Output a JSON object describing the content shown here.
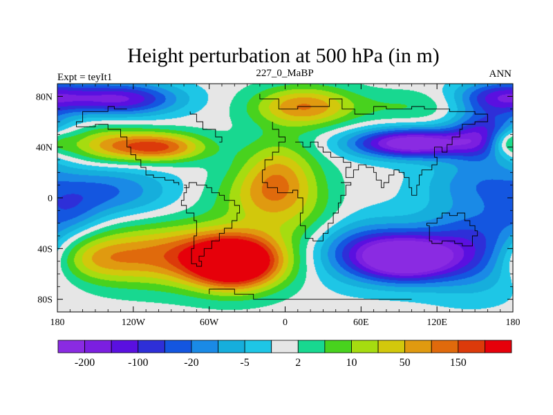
{
  "chart_data": {
    "type": "heatmap",
    "title": "Height perturbation at 500 hPa (in m)",
    "left_string": "Expt = teyIt1",
    "center_string": "227_0_MaBP",
    "right_string": "ANN",
    "x_range": [
      -180,
      180
    ],
    "y_range": [
      -90,
      90
    ],
    "x_ticks": [
      {
        "value": -180,
        "label": "180"
      },
      {
        "value": -120,
        "label": "120W"
      },
      {
        "value": -60,
        "label": "60W"
      },
      {
        "value": 0,
        "label": "0"
      },
      {
        "value": 60,
        "label": "60E"
      },
      {
        "value": 120,
        "label": "120E"
      },
      {
        "value": 180,
        "label": "180"
      }
    ],
    "y_ticks": [
      {
        "value": 80,
        "label": "80N"
      },
      {
        "value": 40,
        "label": "40N"
      },
      {
        "value": 0,
        "label": "0"
      },
      {
        "value": -40,
        "label": "40S"
      },
      {
        "value": -80,
        "label": "80S"
      }
    ],
    "colorbar": {
      "colors": [
        "#8a2be2",
        "#7b1fe0",
        "#5a10e0",
        "#2e2fd8",
        "#1456e0",
        "#1a8ae6",
        "#16aedc",
        "#1ec6e6",
        "#e6e6e6",
        "#18d890",
        "#48d21e",
        "#a6dc10",
        "#d2c80c",
        "#e09a10",
        "#e06a0c",
        "#dc3a0a",
        "#e6000a"
      ],
      "labels": [
        {
          "boundary": 1,
          "text": "-200"
        },
        {
          "boundary": 3,
          "text": "-100"
        },
        {
          "boundary": 5,
          "text": "-20"
        },
        {
          "boundary": 7,
          "text": "-5"
        },
        {
          "boundary": 9,
          "text": "2"
        },
        {
          "boundary": 11,
          "text": "10"
        },
        {
          "boundary": 13,
          "text": "50"
        },
        {
          "boundary": 15,
          "text": "150"
        }
      ]
    },
    "anomaly_centers": [
      {
        "lon": -40,
        "lat": -52,
        "amp": 9.0,
        "sx": 24,
        "sy": 14
      },
      {
        "lon": -75,
        "lat": -45,
        "amp": 6.0,
        "sx": 60,
        "sy": 17
      },
      {
        "lon": -155,
        "lat": -48,
        "amp": 3.0,
        "sx": 28,
        "sy": 13
      },
      {
        "lon": 15,
        "lat": 72,
        "amp": 5.5,
        "sx": 28,
        "sy": 11
      },
      {
        "lon": 100,
        "lat": 72,
        "amp": 1.5,
        "sx": 30,
        "sy": 9
      },
      {
        "lon": -100,
        "lat": 40,
        "amp": 6.5,
        "sx": 26,
        "sy": 8
      },
      {
        "lon": -145,
        "lat": 42,
        "amp": 3.5,
        "sx": 25,
        "sy": 10
      },
      {
        "lon": 175,
        "lat": 44,
        "amp": 4.5,
        "sx": 12,
        "sy": 8
      },
      {
        "lon": -5,
        "lat": 20,
        "amp": 4.0,
        "sx": 22,
        "sy": 20
      },
      {
        "lon": -15,
        "lat": 0,
        "amp": 3.0,
        "sx": 30,
        "sy": 16
      },
      {
        "lon": 20,
        "lat": -20,
        "amp": 1.5,
        "sx": 28,
        "sy": 14
      },
      {
        "lon": -130,
        "lat": 78,
        "amp": -6.5,
        "sx": 32,
        "sy": 9
      },
      {
        "lon": 100,
        "lat": 43,
        "amp": -9.0,
        "sx": 33,
        "sy": 8
      },
      {
        "lon": 160,
        "lat": 50,
        "amp": -6.0,
        "sx": 20,
        "sy": 14
      },
      {
        "lon": 170,
        "lat": 80,
        "amp": -5.0,
        "sx": 25,
        "sy": 9
      },
      {
        "lon": 95,
        "lat": -48,
        "amp": -9.0,
        "sx": 26,
        "sy": 12
      },
      {
        "lon": 55,
        "lat": -40,
        "amp": -4.5,
        "sx": 32,
        "sy": 18
      },
      {
        "lon": 150,
        "lat": -40,
        "amp": -5.5,
        "sx": 32,
        "sy": 22
      },
      {
        "lon": -140,
        "lat": 5,
        "amp": -3.5,
        "sx": 35,
        "sy": 14
      },
      {
        "lon": 150,
        "lat": 12,
        "amp": -2.5,
        "sx": 30,
        "sy": 14
      },
      {
        "lon": -170,
        "lat": -12,
        "amp": -2.0,
        "sx": 18,
        "sy": 12
      }
    ],
    "coastlines": [
      [
        [
          -20,
          82
        ],
        [
          -20,
          78
        ],
        [
          -5,
          78
        ],
        [
          -5,
          70
        ],
        [
          10,
          70
        ],
        [
          10,
          72
        ],
        [
          35,
          72
        ],
        [
          35,
          78
        ],
        [
          45,
          78
        ],
        [
          45,
          70
        ],
        [
          55,
          70
        ],
        [
          55,
          66
        ],
        [
          60,
          66
        ]
      ],
      [
        [
          -75,
          68
        ],
        [
          -75,
          66
        ],
        [
          -70,
          66
        ],
        [
          -70,
          60
        ],
        [
          -65,
          60
        ],
        [
          -65,
          54
        ],
        [
          -55,
          54
        ],
        [
          -55,
          48
        ],
        [
          -50,
          48
        ],
        [
          -50,
          44
        ],
        [
          -52,
          44
        ]
      ],
      [
        [
          -10,
          60
        ],
        [
          -10,
          54
        ],
        [
          -5,
          54
        ],
        [
          -5,
          48
        ],
        [
          0,
          48
        ],
        [
          0,
          44
        ],
        [
          -5,
          44
        ],
        [
          -5,
          36
        ],
        [
          -10,
          36
        ],
        [
          -10,
          30
        ],
        [
          -16,
          30
        ],
        [
          -16,
          22
        ],
        [
          -18,
          22
        ],
        [
          -18,
          12
        ],
        [
          -14,
          12
        ],
        [
          -14,
          8
        ],
        [
          -6,
          8
        ],
        [
          -6,
          4
        ],
        [
          6,
          4
        ],
        [
          6,
          6
        ],
        [
          10,
          6
        ],
        [
          10,
          0
        ],
        [
          14,
          0
        ],
        [
          14,
          -12
        ],
        [
          12,
          -12
        ],
        [
          12,
          -22
        ],
        [
          16,
          -22
        ],
        [
          16,
          -32
        ],
        [
          22,
          -32
        ],
        [
          22,
          -34
        ],
        [
          30,
          -34
        ],
        [
          30,
          -28
        ],
        [
          34,
          -28
        ],
        [
          34,
          -20
        ],
        [
          38,
          -20
        ],
        [
          38,
          -12
        ],
        [
          42,
          -12
        ],
        [
          42,
          -4
        ],
        [
          44,
          -4
        ],
        [
          44,
          2
        ],
        [
          48,
          2
        ],
        [
          48,
          10
        ],
        [
          52,
          10
        ],
        [
          52,
          12
        ],
        [
          44,
          12
        ]
      ],
      [
        [
          -80,
          10
        ],
        [
          -78,
          10
        ],
        [
          -78,
          4
        ],
        [
          -80,
          4
        ],
        [
          -80,
          -2
        ],
        [
          -82,
          -2
        ],
        [
          -82,
          -6
        ],
        [
          -78,
          -6
        ],
        [
          -78,
          -12
        ],
        [
          -72,
          -12
        ],
        [
          -72,
          -18
        ],
        [
          -70,
          -18
        ],
        [
          -70,
          -30
        ],
        [
          -72,
          -30
        ],
        [
          -72,
          -40
        ],
        [
          -74,
          -40
        ],
        [
          -74,
          -52
        ],
        [
          -70,
          -52
        ],
        [
          -70,
          -54
        ],
        [
          -66,
          -54
        ],
        [
          -66,
          -50
        ],
        [
          -68,
          -50
        ],
        [
          -68,
          -46
        ],
        [
          -64,
          -46
        ],
        [
          -64,
          -40
        ],
        [
          -58,
          -40
        ],
        [
          -58,
          -34
        ],
        [
          -52,
          -34
        ],
        [
          -52,
          -28
        ],
        [
          -48,
          -28
        ],
        [
          -48,
          -24
        ],
        [
          -42,
          -24
        ],
        [
          -42,
          -18
        ],
        [
          -38,
          -18
        ],
        [
          -38,
          -12
        ],
        [
          -36,
          -12
        ],
        [
          -36,
          -6
        ],
        [
          -40,
          -6
        ],
        [
          -40,
          -2
        ],
        [
          -48,
          -2
        ],
        [
          -48,
          2
        ],
        [
          -52,
          2
        ],
        [
          -52,
          4
        ],
        [
          -58,
          4
        ],
        [
          -58,
          8
        ],
        [
          -62,
          8
        ],
        [
          -62,
          10
        ],
        [
          -70,
          10
        ],
        [
          -70,
          12
        ],
        [
          -76,
          12
        ],
        [
          -76,
          8
        ],
        [
          -80,
          8
        ]
      ],
      [
        [
          -60,
          -76
        ],
        [
          -60,
          -72
        ],
        [
          -40,
          -72
        ],
        [
          -40,
          -76
        ],
        [
          -25,
          -76
        ],
        [
          -25,
          -80
        ],
        [
          0,
          -80
        ],
        [
          40,
          -80
        ],
        [
          100,
          -80
        ]
      ],
      [
        [
          60,
          66
        ],
        [
          70,
          66
        ],
        [
          70,
          72
        ],
        [
          80,
          72
        ],
        [
          80,
          70
        ],
        [
          100,
          70
        ],
        [
          100,
          72
        ],
        [
          110,
          72
        ],
        [
          110,
          70
        ],
        [
          130,
          70
        ],
        [
          130,
          68
        ],
        [
          150,
          68
        ],
        [
          150,
          66
        ],
        [
          160,
          66
        ],
        [
          160,
          60
        ],
        [
          150,
          60
        ],
        [
          150,
          58
        ],
        [
          140,
          58
        ],
        [
          140,
          54
        ],
        [
          138,
          54
        ],
        [
          138,
          48
        ],
        [
          132,
          48
        ],
        [
          132,
          42
        ],
        [
          128,
          42
        ],
        [
          128,
          36
        ],
        [
          124,
          36
        ],
        [
          124,
          40
        ],
        [
          118,
          40
        ],
        [
          118,
          32
        ],
        [
          120,
          32
        ],
        [
          120,
          26
        ],
        [
          116,
          26
        ],
        [
          116,
          22
        ],
        [
          108,
          22
        ],
        [
          108,
          18
        ],
        [
          106,
          18
        ],
        [
          106,
          10
        ],
        [
          104,
          10
        ],
        [
          104,
          2
        ],
        [
          100,
          2
        ],
        [
          100,
          8
        ],
        [
          98,
          8
        ],
        [
          98,
          16
        ],
        [
          94,
          16
        ],
        [
          94,
          20
        ],
        [
          90,
          20
        ],
        [
          90,
          22
        ],
        [
          86,
          22
        ],
        [
          86,
          18
        ],
        [
          82,
          18
        ],
        [
          82,
          12
        ],
        [
          78,
          12
        ],
        [
          78,
          8
        ],
        [
          76,
          8
        ],
        [
          76,
          14
        ],
        [
          72,
          14
        ],
        [
          72,
          20
        ],
        [
          70,
          20
        ],
        [
          70,
          24
        ],
        [
          64,
          24
        ],
        [
          64,
          26
        ],
        [
          58,
          26
        ],
        [
          58,
          22
        ],
        [
          54,
          22
        ],
        [
          54,
          16
        ],
        [
          48,
          16
        ],
        [
          48,
          24
        ],
        [
          52,
          24
        ],
        [
          52,
          28
        ],
        [
          46,
          28
        ],
        [
          46,
          32
        ],
        [
          36,
          32
        ],
        [
          36,
          36
        ],
        [
          30,
          36
        ],
        [
          30,
          40
        ],
        [
          26,
          40
        ],
        [
          26,
          44
        ],
        [
          20,
          44
        ],
        [
          20,
          40
        ],
        [
          14,
          40
        ],
        [
          14,
          44
        ],
        [
          8,
          44
        ]
      ],
      [
        [
          112,
          -22
        ],
        [
          114,
          -22
        ],
        [
          114,
          -34
        ],
        [
          116,
          -34
        ],
        [
          116,
          -36
        ],
        [
          124,
          -36
        ],
        [
          124,
          -34
        ],
        [
          134,
          -34
        ],
        [
          134,
          -36
        ],
        [
          140,
          -36
        ],
        [
          140,
          -38
        ],
        [
          148,
          -38
        ],
        [
          148,
          -30
        ],
        [
          152,
          -30
        ],
        [
          152,
          -26
        ],
        [
          150,
          -26
        ],
        [
          150,
          -22
        ],
        [
          146,
          -22
        ],
        [
          146,
          -18
        ],
        [
          142,
          -18
        ],
        [
          142,
          -12
        ],
        [
          136,
          -12
        ],
        [
          136,
          -14
        ],
        [
          130,
          -14
        ],
        [
          130,
          -12
        ],
        [
          124,
          -12
        ],
        [
          124,
          -16
        ],
        [
          120,
          -16
        ],
        [
          120,
          -20
        ],
        [
          112,
          -20
        ],
        [
          112,
          -22
        ]
      ],
      [
        [
          -125,
          70
        ],
        [
          -135,
          70
        ],
        [
          -135,
          72
        ],
        [
          -140,
          72
        ],
        [
          -140,
          68
        ],
        [
          -160,
          68
        ],
        [
          -160,
          60
        ],
        [
          -165,
          60
        ],
        [
          -165,
          56
        ],
        [
          -150,
          56
        ],
        [
          -150,
          58
        ],
        [
          -140,
          58
        ],
        [
          -140,
          54
        ],
        [
          -130,
          54
        ],
        [
          -130,
          48
        ],
        [
          -125,
          48
        ],
        [
          -125,
          40
        ],
        [
          -122,
          40
        ],
        [
          -122,
          34
        ],
        [
          -118,
          34
        ],
        [
          -118,
          30
        ],
        [
          -114,
          30
        ],
        [
          -114,
          24
        ],
        [
          -110,
          24
        ],
        [
          -110,
          18
        ],
        [
          -104,
          18
        ],
        [
          -104,
          16
        ],
        [
          -95,
          16
        ],
        [
          -95,
          14
        ],
        [
          -88,
          14
        ],
        [
          -88,
          12
        ],
        [
          -84,
          12
        ],
        [
          -84,
          10
        ]
      ]
    ]
  }
}
